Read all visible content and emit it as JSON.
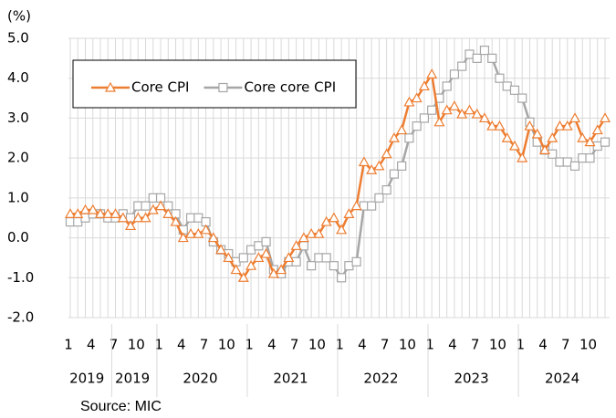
{
  "chart_data": {
    "type": "line",
    "y_unit": "(%)",
    "source": "Source: MIC",
    "categories": [
      "1",
      null,
      null,
      "4",
      null,
      null,
      "7",
      null,
      null,
      "10",
      null,
      null,
      "1",
      null,
      null,
      "4",
      null,
      null,
      "7",
      null,
      null,
      "10",
      null,
      null,
      "1",
      null,
      null,
      "4",
      null,
      null,
      "7",
      null,
      null,
      "10",
      null,
      null,
      "1",
      null,
      null,
      "4",
      null,
      null,
      "7",
      null,
      null,
      "10",
      null,
      null,
      "1",
      null,
      null,
      "4",
      null,
      null,
      "7",
      null,
      null,
      "10",
      null,
      null,
      "1",
      null,
      null,
      "4",
      null,
      null,
      "7",
      null,
      null,
      "10",
      null,
      null
    ],
    "year_labels": [
      "2019",
      "2019",
      "2020",
      "2021",
      "2022",
      "2023",
      "2024"
    ],
    "series": [
      {
        "name": "Core CPI",
        "color": "#ed7d31",
        "marker": "triangle",
        "values": [
          0.6,
          0.6,
          0.7,
          0.7,
          0.6,
          0.6,
          0.6,
          0.5,
          0.3,
          0.5,
          0.5,
          0.7,
          0.8,
          0.6,
          0.4,
          0.0,
          0.1,
          0.1,
          0.2,
          0.0,
          -0.3,
          -0.5,
          -0.8,
          -1.0,
          -0.7,
          -0.5,
          -0.4,
          -0.9,
          -0.8,
          -0.5,
          -0.2,
          0.0,
          0.1,
          0.1,
          0.4,
          0.5,
          0.2,
          0.6,
          0.8,
          1.9,
          1.7,
          1.8,
          2.1,
          2.5,
          2.7,
          3.4,
          3.5,
          3.8,
          4.1,
          2.9,
          3.2,
          3.3,
          3.1,
          3.2,
          3.1,
          3.0,
          2.8,
          2.8,
          2.5,
          2.3,
          2.0,
          2.8,
          2.6,
          2.2,
          2.5,
          2.8,
          2.8,
          3.0,
          2.5,
          2.4,
          2.7,
          3.0
        ]
      },
      {
        "name": "Core core CPI",
        "color": "#a6a6a6",
        "marker": "square",
        "values": [
          0.4,
          0.4,
          0.5,
          0.6,
          0.6,
          0.5,
          0.5,
          0.6,
          0.5,
          0.8,
          0.8,
          1.0,
          1.0,
          0.8,
          0.6,
          0.2,
          0.5,
          0.5,
          0.4,
          -0.1,
          -0.3,
          -0.4,
          -0.6,
          -0.5,
          -0.3,
          -0.2,
          -0.1,
          -0.8,
          -0.9,
          -0.6,
          -0.6,
          -0.2,
          -0.7,
          -0.5,
          -0.5,
          -0.7,
          -1.0,
          -0.7,
          -0.6,
          0.8,
          0.8,
          1.0,
          1.2,
          1.6,
          1.8,
          2.5,
          2.8,
          3.0,
          3.2,
          3.5,
          3.8,
          4.1,
          4.3,
          4.6,
          4.5,
          4.7,
          4.5,
          4.0,
          3.8,
          3.7,
          3.5,
          2.9,
          2.4,
          2.2,
          2.1,
          1.9,
          1.9,
          1.8,
          2.0,
          2.0,
          2.3,
          2.4
        ]
      }
    ],
    "ylim": [
      -2.0,
      5.0
    ],
    "yticks": [
      {
        "value": -2.0,
        "label": "-2.0"
      },
      {
        "value": -1.0,
        "label": "-1.0"
      },
      {
        "value": 0.0,
        "label": "0.0"
      },
      {
        "value": 1.0,
        "label": "1.0"
      },
      {
        "value": 2.0,
        "label": "2.0"
      },
      {
        "value": 3.0,
        "label": "3.0"
      },
      {
        "value": 4.0,
        "label": "4.0"
      },
      {
        "value": 5.0,
        "label": "5.0"
      }
    ],
    "negative_tick_color": "#ff0000",
    "grid": true,
    "legend": "upper left"
  }
}
